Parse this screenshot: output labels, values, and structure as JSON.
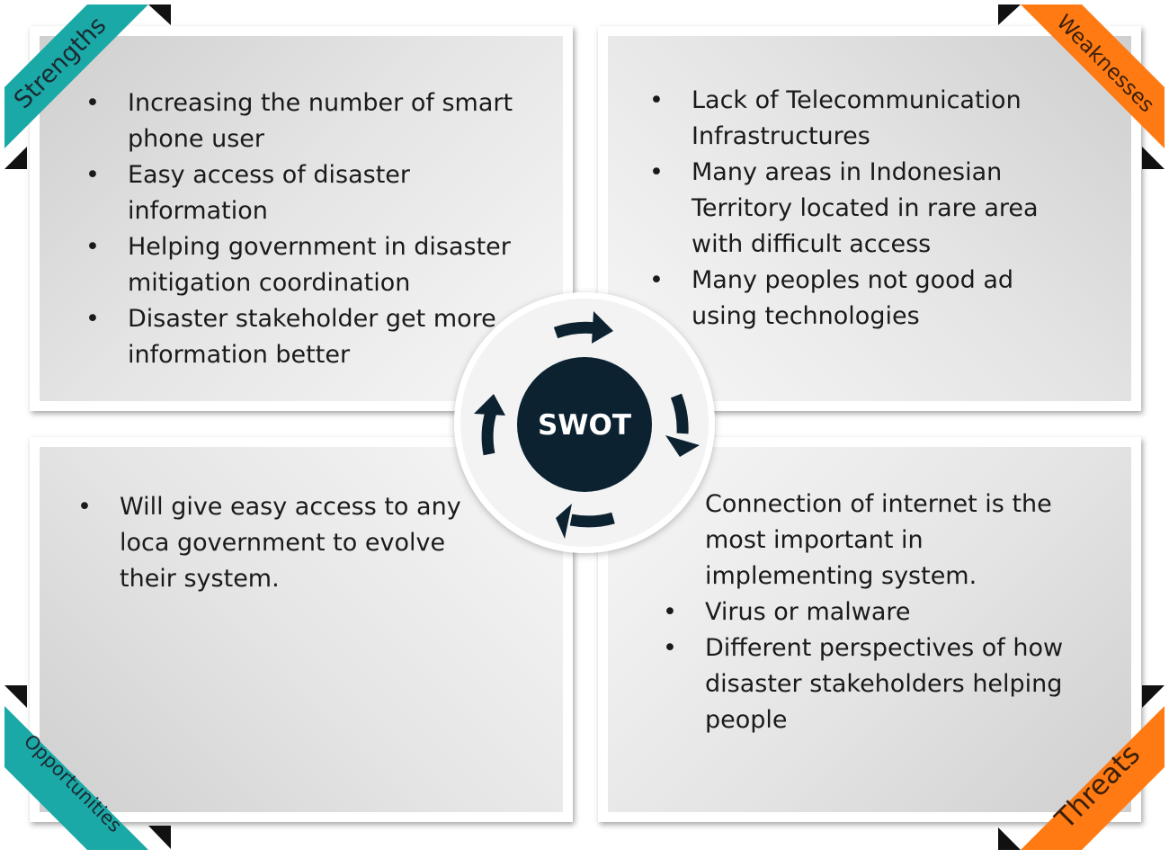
{
  "colors": {
    "strengths_ribbon": "#1aa9a6",
    "opportunities_ribbon": "#1aa9a6",
    "weaknesses_ribbon": "#ff7a12",
    "threats_ribbon": "#ff7a12",
    "center_circle": "#0c2231",
    "arrows": "#0c2231"
  },
  "center": {
    "label": "SWOT"
  },
  "strengths": {
    "label": "Strengths",
    "items": [
      "Increasing the number of smart phone user",
      "Easy access of disaster information",
      "Helping government in disaster mitigation coordination",
      "Disaster stakeholder get more information better"
    ]
  },
  "weaknesses": {
    "label": "Weaknesses",
    "items": [
      "Lack of Telecommunication Infrastructures",
      "Many areas in Indonesian Territory located in rare area with difficult access",
      "Many peoples not good ad using technologies"
    ]
  },
  "opportunities": {
    "label": "Opportunities",
    "items": [
      "Will give easy access to any loca government to evolve their system."
    ]
  },
  "threats": {
    "label": "Threats",
    "items": [
      "Connection of internet is the most important in implementing system.",
      "Virus or malware",
      "Different perspectives of how disaster stakeholders helping people"
    ]
  }
}
